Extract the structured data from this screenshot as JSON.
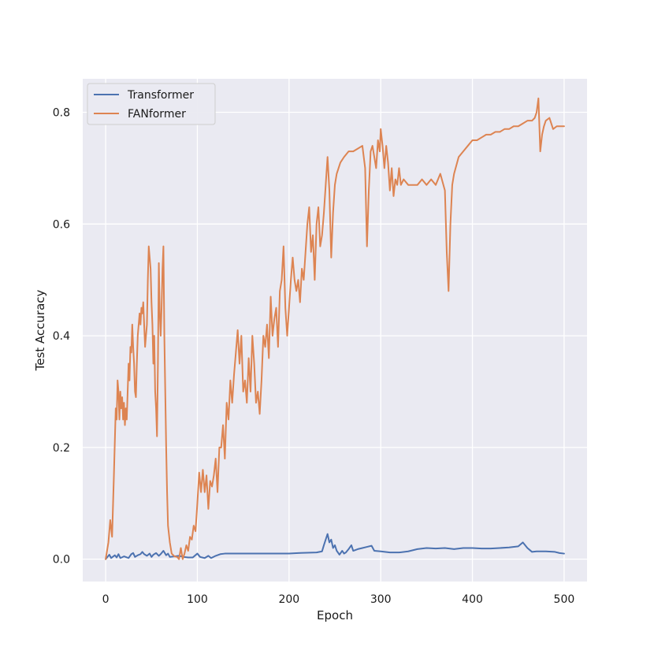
{
  "chart_data": {
    "type": "line",
    "xlabel": "Epoch",
    "ylabel": "Test Accuracy",
    "xlim": [
      -25,
      525
    ],
    "ylim": [
      -0.04,
      0.86
    ],
    "xticks": [
      0,
      100,
      200,
      300,
      400,
      500
    ],
    "yticks": [
      0.0,
      0.2,
      0.4,
      0.6,
      0.8
    ],
    "xtick_labels": [
      "0",
      "100",
      "200",
      "300",
      "400",
      "500"
    ],
    "ytick_labels": [
      "0.0",
      "0.2",
      "0.4",
      "0.6",
      "0.8"
    ],
    "grid": true,
    "legend_position": "top-left",
    "background_color": "#eaeaf2",
    "grid_color": "#ffffff",
    "series": [
      {
        "name": "Transformer",
        "color": "#4c72b0",
        "points": [
          [
            0,
            0.0
          ],
          [
            4,
            0.008
          ],
          [
            6,
            0.002
          ],
          [
            10,
            0.007
          ],
          [
            12,
            0.003
          ],
          [
            14,
            0.009
          ],
          [
            16,
            0.002
          ],
          [
            20,
            0.005
          ],
          [
            25,
            0.002
          ],
          [
            28,
            0.009
          ],
          [
            30,
            0.011
          ],
          [
            32,
            0.004
          ],
          [
            35,
            0.007
          ],
          [
            38,
            0.009
          ],
          [
            40,
            0.013
          ],
          [
            42,
            0.009
          ],
          [
            45,
            0.006
          ],
          [
            48,
            0.01
          ],
          [
            50,
            0.004
          ],
          [
            52,
            0.008
          ],
          [
            55,
            0.011
          ],
          [
            58,
            0.006
          ],
          [
            60,
            0.009
          ],
          [
            63,
            0.015
          ],
          [
            66,
            0.007
          ],
          [
            68,
            0.01
          ],
          [
            70,
            0.004
          ],
          [
            75,
            0.005
          ],
          [
            80,
            0.006
          ],
          [
            85,
            0.004
          ],
          [
            90,
            0.003
          ],
          [
            95,
            0.003
          ],
          [
            100,
            0.01
          ],
          [
            103,
            0.004
          ],
          [
            108,
            0.002
          ],
          [
            112,
            0.006
          ],
          [
            115,
            0.002
          ],
          [
            120,
            0.006
          ],
          [
            125,
            0.009
          ],
          [
            130,
            0.01
          ],
          [
            150,
            0.01
          ],
          [
            200,
            0.01
          ],
          [
            210,
            0.011
          ],
          [
            230,
            0.012
          ],
          [
            236,
            0.014
          ],
          [
            238,
            0.025
          ],
          [
            240,
            0.035
          ],
          [
            242,
            0.045
          ],
          [
            244,
            0.03
          ],
          [
            246,
            0.035
          ],
          [
            248,
            0.02
          ],
          [
            250,
            0.025
          ],
          [
            252,
            0.015
          ],
          [
            255,
            0.008
          ],
          [
            258,
            0.015
          ],
          [
            260,
            0.01
          ],
          [
            262,
            0.012
          ],
          [
            265,
            0.018
          ],
          [
            268,
            0.025
          ],
          [
            270,
            0.015
          ],
          [
            275,
            0.018
          ],
          [
            280,
            0.02
          ],
          [
            285,
            0.022
          ],
          [
            290,
            0.024
          ],
          [
            293,
            0.015
          ],
          [
            300,
            0.014
          ],
          [
            310,
            0.012
          ],
          [
            320,
            0.012
          ],
          [
            330,
            0.014
          ],
          [
            340,
            0.018
          ],
          [
            350,
            0.02
          ],
          [
            360,
            0.019
          ],
          [
            370,
            0.02
          ],
          [
            380,
            0.018
          ],
          [
            390,
            0.02
          ],
          [
            400,
            0.02
          ],
          [
            410,
            0.019
          ],
          [
            420,
            0.019
          ],
          [
            430,
            0.02
          ],
          [
            440,
            0.021
          ],
          [
            450,
            0.023
          ],
          [
            455,
            0.03
          ],
          [
            460,
            0.02
          ],
          [
            465,
            0.013
          ],
          [
            470,
            0.014
          ],
          [
            480,
            0.014
          ],
          [
            490,
            0.013
          ],
          [
            495,
            0.011
          ],
          [
            500,
            0.01
          ]
        ]
      },
      {
        "name": "FANformer",
        "color": "#dd8452",
        "points": [
          [
            0,
            0.0
          ],
          [
            3,
            0.03
          ],
          [
            5,
            0.07
          ],
          [
            7,
            0.04
          ],
          [
            9,
            0.15
          ],
          [
            11,
            0.27
          ],
          [
            12,
            0.25
          ],
          [
            13,
            0.32
          ],
          [
            14,
            0.3
          ],
          [
            15,
            0.25
          ],
          [
            16,
            0.3
          ],
          [
            17,
            0.27
          ],
          [
            18,
            0.29
          ],
          [
            19,
            0.25
          ],
          [
            20,
            0.28
          ],
          [
            21,
            0.24
          ],
          [
            22,
            0.27
          ],
          [
            23,
            0.25
          ],
          [
            24,
            0.3
          ],
          [
            25,
            0.35
          ],
          [
            26,
            0.32
          ],
          [
            27,
            0.38
          ],
          [
            28,
            0.37
          ],
          [
            29,
            0.42
          ],
          [
            30,
            0.38
          ],
          [
            31,
            0.35
          ],
          [
            32,
            0.3
          ],
          [
            33,
            0.29
          ],
          [
            34,
            0.35
          ],
          [
            35,
            0.4
          ],
          [
            36,
            0.42
          ],
          [
            37,
            0.44
          ],
          [
            38,
            0.42
          ],
          [
            39,
            0.45
          ],
          [
            40,
            0.44
          ],
          [
            41,
            0.46
          ],
          [
            42,
            0.42
          ],
          [
            43,
            0.38
          ],
          [
            44,
            0.4
          ],
          [
            45,
            0.42
          ],
          [
            46,
            0.5
          ],
          [
            47,
            0.56
          ],
          [
            48,
            0.54
          ],
          [
            49,
            0.52
          ],
          [
            50,
            0.46
          ],
          [
            51,
            0.42
          ],
          [
            52,
            0.35
          ],
          [
            53,
            0.4
          ],
          [
            54,
            0.3
          ],
          [
            55,
            0.27
          ],
          [
            56,
            0.22
          ],
          [
            57,
            0.35
          ],
          [
            58,
            0.53
          ],
          [
            59,
            0.44
          ],
          [
            60,
            0.4
          ],
          [
            61,
            0.45
          ],
          [
            62,
            0.52
          ],
          [
            63,
            0.56
          ],
          [
            64,
            0.4
          ],
          [
            65,
            0.3
          ],
          [
            66,
            0.2
          ],
          [
            67,
            0.12
          ],
          [
            68,
            0.06
          ],
          [
            70,
            0.03
          ],
          [
            72,
            0.01
          ],
          [
            75,
            0.005
          ],
          [
            78,
            0.004
          ],
          [
            80,
            0.0
          ],
          [
            82,
            0.02
          ],
          [
            84,
            0.0
          ],
          [
            86,
            0.01
          ],
          [
            88,
            0.025
          ],
          [
            90,
            0.015
          ],
          [
            92,
            0.04
          ],
          [
            94,
            0.035
          ],
          [
            96,
            0.06
          ],
          [
            98,
            0.05
          ],
          [
            100,
            0.1
          ],
          [
            102,
            0.155
          ],
          [
            104,
            0.12
          ],
          [
            106,
            0.16
          ],
          [
            108,
            0.12
          ],
          [
            110,
            0.15
          ],
          [
            112,
            0.09
          ],
          [
            114,
            0.14
          ],
          [
            116,
            0.13
          ],
          [
            118,
            0.15
          ],
          [
            120,
            0.18
          ],
          [
            122,
            0.12
          ],
          [
            124,
            0.2
          ],
          [
            126,
            0.2
          ],
          [
            128,
            0.24
          ],
          [
            130,
            0.18
          ],
          [
            132,
            0.28
          ],
          [
            134,
            0.25
          ],
          [
            136,
            0.32
          ],
          [
            138,
            0.28
          ],
          [
            140,
            0.33
          ],
          [
            142,
            0.37
          ],
          [
            144,
            0.41
          ],
          [
            146,
            0.35
          ],
          [
            148,
            0.4
          ],
          [
            150,
            0.3
          ],
          [
            152,
            0.32
          ],
          [
            154,
            0.28
          ],
          [
            156,
            0.36
          ],
          [
            158,
            0.3
          ],
          [
            160,
            0.4
          ],
          [
            162,
            0.35
          ],
          [
            164,
            0.28
          ],
          [
            166,
            0.3
          ],
          [
            168,
            0.26
          ],
          [
            170,
            0.32
          ],
          [
            172,
            0.4
          ],
          [
            174,
            0.38
          ],
          [
            176,
            0.42
          ],
          [
            178,
            0.36
          ],
          [
            180,
            0.47
          ],
          [
            182,
            0.4
          ],
          [
            184,
            0.43
          ],
          [
            186,
            0.45
          ],
          [
            188,
            0.38
          ],
          [
            190,
            0.48
          ],
          [
            192,
            0.5
          ],
          [
            194,
            0.56
          ],
          [
            196,
            0.45
          ],
          [
            198,
            0.4
          ],
          [
            200,
            0.45
          ],
          [
            202,
            0.5
          ],
          [
            204,
            0.54
          ],
          [
            206,
            0.5
          ],
          [
            208,
            0.48
          ],
          [
            210,
            0.5
          ],
          [
            212,
            0.46
          ],
          [
            214,
            0.52
          ],
          [
            216,
            0.5
          ],
          [
            218,
            0.55
          ],
          [
            220,
            0.6
          ],
          [
            222,
            0.63
          ],
          [
            224,
            0.55
          ],
          [
            226,
            0.58
          ],
          [
            228,
            0.5
          ],
          [
            230,
            0.6
          ],
          [
            232,
            0.63
          ],
          [
            234,
            0.56
          ],
          [
            236,
            0.58
          ],
          [
            238,
            0.62
          ],
          [
            240,
            0.67
          ],
          [
            242,
            0.72
          ],
          [
            244,
            0.66
          ],
          [
            246,
            0.54
          ],
          [
            248,
            0.62
          ],
          [
            250,
            0.67
          ],
          [
            252,
            0.69
          ],
          [
            254,
            0.7
          ],
          [
            256,
            0.71
          ],
          [
            260,
            0.72
          ],
          [
            265,
            0.73
          ],
          [
            270,
            0.73
          ],
          [
            275,
            0.735
          ],
          [
            280,
            0.74
          ],
          [
            283,
            0.7
          ],
          [
            285,
            0.56
          ],
          [
            287,
            0.66
          ],
          [
            289,
            0.73
          ],
          [
            291,
            0.74
          ],
          [
            293,
            0.72
          ],
          [
            295,
            0.7
          ],
          [
            297,
            0.75
          ],
          [
            299,
            0.73
          ],
          [
            300,
            0.77
          ],
          [
            302,
            0.74
          ],
          [
            304,
            0.7
          ],
          [
            306,
            0.74
          ],
          [
            308,
            0.71
          ],
          [
            310,
            0.66
          ],
          [
            312,
            0.7
          ],
          [
            314,
            0.65
          ],
          [
            316,
            0.68
          ],
          [
            318,
            0.67
          ],
          [
            320,
            0.7
          ],
          [
            322,
            0.67
          ],
          [
            325,
            0.68
          ],
          [
            330,
            0.67
          ],
          [
            335,
            0.67
          ],
          [
            340,
            0.67
          ],
          [
            345,
            0.68
          ],
          [
            350,
            0.67
          ],
          [
            355,
            0.68
          ],
          [
            360,
            0.67
          ],
          [
            365,
            0.69
          ],
          [
            370,
            0.66
          ],
          [
            372,
            0.55
          ],
          [
            374,
            0.48
          ],
          [
            376,
            0.6
          ],
          [
            378,
            0.67
          ],
          [
            380,
            0.69
          ],
          [
            385,
            0.72
          ],
          [
            390,
            0.73
          ],
          [
            395,
            0.74
          ],
          [
            400,
            0.75
          ],
          [
            405,
            0.75
          ],
          [
            410,
            0.755
          ],
          [
            415,
            0.76
          ],
          [
            420,
            0.76
          ],
          [
            425,
            0.765
          ],
          [
            430,
            0.765
          ],
          [
            435,
            0.77
          ],
          [
            440,
            0.77
          ],
          [
            445,
            0.775
          ],
          [
            450,
            0.775
          ],
          [
            455,
            0.78
          ],
          [
            460,
            0.785
          ],
          [
            465,
            0.785
          ],
          [
            468,
            0.79
          ],
          [
            470,
            0.8
          ],
          [
            472,
            0.825
          ],
          [
            474,
            0.73
          ],
          [
            476,
            0.76
          ],
          [
            478,
            0.775
          ],
          [
            480,
            0.785
          ],
          [
            484,
            0.79
          ],
          [
            488,
            0.77
          ],
          [
            492,
            0.775
          ],
          [
            496,
            0.775
          ],
          [
            500,
            0.775
          ]
        ]
      }
    ]
  }
}
